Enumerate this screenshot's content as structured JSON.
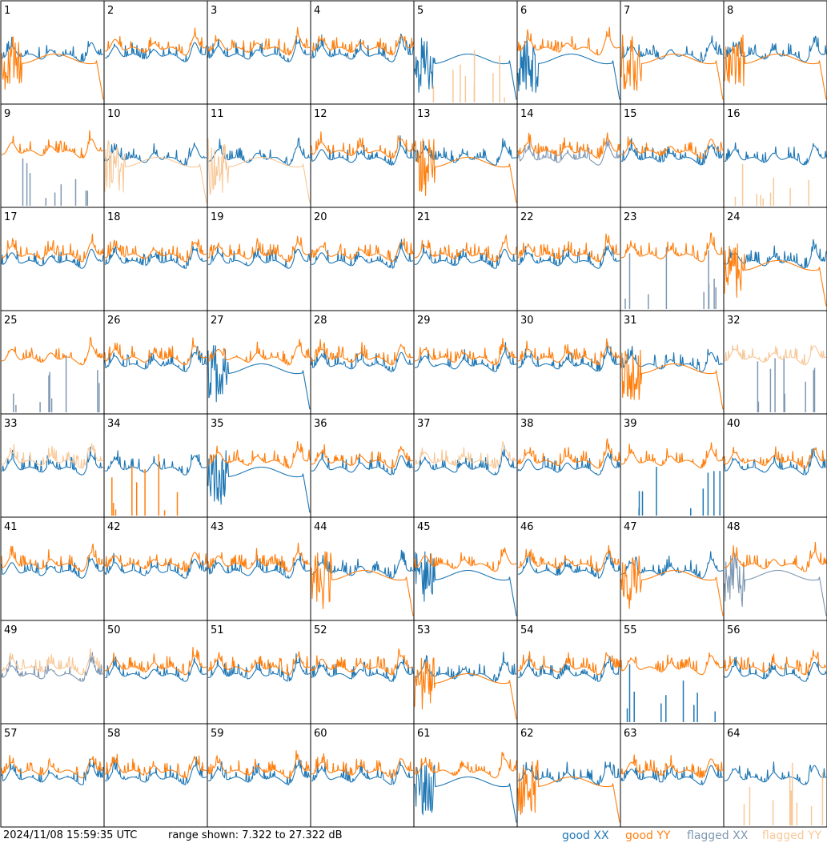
{
  "footer": {
    "timestamp": "2024/11/08 15:59:35 UTC",
    "range_text": "range shown: 7.322 to 27.322 dB",
    "legend": {
      "good_xx": "good XX",
      "good_yy": "good YY",
      "flagged_xx": "flagged XX",
      "flagged_yy": "flagged YY"
    }
  },
  "colors": {
    "good_xx": "#1f77b4",
    "good_yy": "#ff7f0e",
    "flagged_xx": "#7f98b2",
    "flagged_yy": "#f8c898",
    "frame": "#000000",
    "background": "#ffffff"
  },
  "chart_data": {
    "type": "line",
    "grid_cols": 8,
    "grid_rows": 8,
    "y_range_db": [
      7.322,
      27.322
    ],
    "panels": [
      {
        "id": "1",
        "xx": "good",
        "yy": "good",
        "xx_shape": "spectrum",
        "yy_shape": "drop"
      },
      {
        "id": "2",
        "xx": "good",
        "yy": "good",
        "xx_shape": "spectrum",
        "yy_shape": "spectrum"
      },
      {
        "id": "3",
        "xx": "good",
        "yy": "good",
        "xx_shape": "spectrum",
        "yy_shape": "spectrum"
      },
      {
        "id": "4",
        "xx": "good",
        "yy": "good",
        "xx_shape": "spectrum",
        "yy_shape": "spectrum"
      },
      {
        "id": "5",
        "xx": "good",
        "yy": "flagged",
        "xx_shape": "drop",
        "yy_shape": "spikes"
      },
      {
        "id": "6",
        "xx": "good",
        "yy": "good",
        "xx_shape": "drop",
        "yy_shape": "spectrum"
      },
      {
        "id": "7",
        "xx": "good",
        "yy": "good",
        "xx_shape": "spectrum",
        "yy_shape": "drop"
      },
      {
        "id": "8",
        "xx": "good",
        "yy": "good",
        "xx_shape": "spectrum",
        "yy_shape": "drop"
      },
      {
        "id": "9",
        "xx": "flagged",
        "yy": "good",
        "xx_shape": "spikes",
        "yy_shape": "spectrum"
      },
      {
        "id": "10",
        "xx": "good",
        "yy": "flagged",
        "xx_shape": "spectrum",
        "yy_shape": "drop"
      },
      {
        "id": "11",
        "xx": "good",
        "yy": "flagged",
        "xx_shape": "spectrum",
        "yy_shape": "drop"
      },
      {
        "id": "12",
        "xx": "good",
        "yy": "good",
        "xx_shape": "spectrum",
        "yy_shape": "spectrum"
      },
      {
        "id": "13",
        "xx": "good",
        "yy": "good",
        "xx_shape": "spectrum",
        "yy_shape": "drop"
      },
      {
        "id": "14",
        "xx": "flagged",
        "yy": "good",
        "xx_shape": "spectrum",
        "yy_shape": "spectrum"
      },
      {
        "id": "15",
        "xx": "good",
        "yy": "good",
        "xx_shape": "spectrum",
        "yy_shape": "spectrum"
      },
      {
        "id": "16",
        "xx": "good",
        "yy": "flagged",
        "xx_shape": "spectrum",
        "yy_shape": "spikes"
      },
      {
        "id": "17",
        "xx": "good",
        "yy": "good",
        "xx_shape": "spectrum",
        "yy_shape": "spectrum"
      },
      {
        "id": "18",
        "xx": "good",
        "yy": "good",
        "xx_shape": "spectrum",
        "yy_shape": "spectrum"
      },
      {
        "id": "19",
        "xx": "good",
        "yy": "good",
        "xx_shape": "spectrum",
        "yy_shape": "spectrum"
      },
      {
        "id": "20",
        "xx": "good",
        "yy": "good",
        "xx_shape": "spectrum",
        "yy_shape": "spectrum"
      },
      {
        "id": "21",
        "xx": "good",
        "yy": "good",
        "xx_shape": "spectrum",
        "yy_shape": "spectrum"
      },
      {
        "id": "22",
        "xx": "good",
        "yy": "good",
        "xx_shape": "spectrum",
        "yy_shape": "spectrum"
      },
      {
        "id": "23",
        "xx": "flagged",
        "yy": "good",
        "xx_shape": "spikes",
        "yy_shape": "spectrum"
      },
      {
        "id": "24",
        "xx": "good",
        "yy": "good",
        "xx_shape": "spectrum",
        "yy_shape": "drop"
      },
      {
        "id": "25",
        "xx": "flagged",
        "yy": "good",
        "xx_shape": "spikes",
        "yy_shape": "spectrum"
      },
      {
        "id": "26",
        "xx": "good",
        "yy": "good",
        "xx_shape": "spectrum",
        "yy_shape": "spectrum"
      },
      {
        "id": "27",
        "xx": "good",
        "yy": "good",
        "xx_shape": "drop",
        "yy_shape": "spectrum"
      },
      {
        "id": "28",
        "xx": "good",
        "yy": "good",
        "xx_shape": "spectrum",
        "yy_shape": "spectrum"
      },
      {
        "id": "29",
        "xx": "good",
        "yy": "good",
        "xx_shape": "spectrum",
        "yy_shape": "spectrum"
      },
      {
        "id": "30",
        "xx": "good",
        "yy": "good",
        "xx_shape": "spectrum",
        "yy_shape": "spectrum"
      },
      {
        "id": "31",
        "xx": "good",
        "yy": "good",
        "xx_shape": "spectrum",
        "yy_shape": "drop"
      },
      {
        "id": "32",
        "xx": "flagged",
        "yy": "flagged",
        "xx_shape": "spikes",
        "yy_shape": "spectrum"
      },
      {
        "id": "33",
        "xx": "good",
        "yy": "flagged",
        "xx_shape": "spectrum",
        "yy_shape": "spectrum"
      },
      {
        "id": "34",
        "xx": "good",
        "yy": "good",
        "xx_shape": "spectrum",
        "yy_shape": "spikes"
      },
      {
        "id": "35",
        "xx": "good",
        "yy": "good",
        "xx_shape": "drop",
        "yy_shape": "spectrum"
      },
      {
        "id": "36",
        "xx": "good",
        "yy": "good",
        "xx_shape": "spectrum",
        "yy_shape": "spectrum"
      },
      {
        "id": "37",
        "xx": "good",
        "yy": "flagged",
        "xx_shape": "spectrum",
        "yy_shape": "spectrum"
      },
      {
        "id": "38",
        "xx": "good",
        "yy": "good",
        "xx_shape": "spectrum",
        "yy_shape": "spectrum"
      },
      {
        "id": "39",
        "xx": "good",
        "yy": "good",
        "xx_shape": "spikes",
        "yy_shape": "spectrum"
      },
      {
        "id": "40",
        "xx": "good",
        "yy": "good",
        "xx_shape": "spectrum",
        "yy_shape": "spectrum"
      },
      {
        "id": "41",
        "xx": "good",
        "yy": "good",
        "xx_shape": "spectrum",
        "yy_shape": "spectrum"
      },
      {
        "id": "42",
        "xx": "good",
        "yy": "good",
        "xx_shape": "spectrum",
        "yy_shape": "spectrum"
      },
      {
        "id": "43",
        "xx": "good",
        "yy": "good",
        "xx_shape": "spectrum",
        "yy_shape": "spectrum"
      },
      {
        "id": "44",
        "xx": "good",
        "yy": "good",
        "xx_shape": "spectrum",
        "yy_shape": "drop"
      },
      {
        "id": "45",
        "xx": "good",
        "yy": "good",
        "xx_shape": "drop",
        "yy_shape": "spectrum"
      },
      {
        "id": "46",
        "xx": "good",
        "yy": "good",
        "xx_shape": "spectrum",
        "yy_shape": "spectrum"
      },
      {
        "id": "47",
        "xx": "good",
        "yy": "good",
        "xx_shape": "spectrum",
        "yy_shape": "drop"
      },
      {
        "id": "48",
        "xx": "flagged",
        "yy": "good",
        "xx_shape": "drop",
        "yy_shape": "spectrum"
      },
      {
        "id": "49",
        "xx": "flagged",
        "yy": "flagged",
        "xx_shape": "spectrum",
        "yy_shape": "spectrum"
      },
      {
        "id": "50",
        "xx": "good",
        "yy": "good",
        "xx_shape": "spectrum",
        "yy_shape": "spectrum"
      },
      {
        "id": "51",
        "xx": "good",
        "yy": "good",
        "xx_shape": "spectrum",
        "yy_shape": "spectrum"
      },
      {
        "id": "52",
        "xx": "good",
        "yy": "good",
        "xx_shape": "spectrum",
        "yy_shape": "spectrum"
      },
      {
        "id": "53",
        "xx": "good",
        "yy": "good",
        "xx_shape": "spectrum",
        "yy_shape": "drop"
      },
      {
        "id": "54",
        "xx": "good",
        "yy": "good",
        "xx_shape": "spectrum",
        "yy_shape": "spectrum"
      },
      {
        "id": "55",
        "xx": "good",
        "yy": "good",
        "xx_shape": "spikes",
        "yy_shape": "spectrum"
      },
      {
        "id": "56",
        "xx": "good",
        "yy": "good",
        "xx_shape": "spectrum",
        "yy_shape": "spectrum"
      },
      {
        "id": "57",
        "xx": "good",
        "yy": "good",
        "xx_shape": "spectrum",
        "yy_shape": "spectrum"
      },
      {
        "id": "58",
        "xx": "good",
        "yy": "good",
        "xx_shape": "spectrum",
        "yy_shape": "spectrum"
      },
      {
        "id": "59",
        "xx": "good",
        "yy": "good",
        "xx_shape": "spectrum",
        "yy_shape": "spectrum"
      },
      {
        "id": "60",
        "xx": "good",
        "yy": "good",
        "xx_shape": "spectrum",
        "yy_shape": "spectrum"
      },
      {
        "id": "61",
        "xx": "good",
        "yy": "good",
        "xx_shape": "drop",
        "yy_shape": "spectrum"
      },
      {
        "id": "62",
        "xx": "good",
        "yy": "good",
        "xx_shape": "spectrum",
        "yy_shape": "drop"
      },
      {
        "id": "63",
        "xx": "good",
        "yy": "good",
        "xx_shape": "spectrum",
        "yy_shape": "spectrum"
      },
      {
        "id": "64",
        "xx": "good",
        "yy": "flagged",
        "xx_shape": "spectrum",
        "yy_shape": "spikes"
      }
    ]
  }
}
